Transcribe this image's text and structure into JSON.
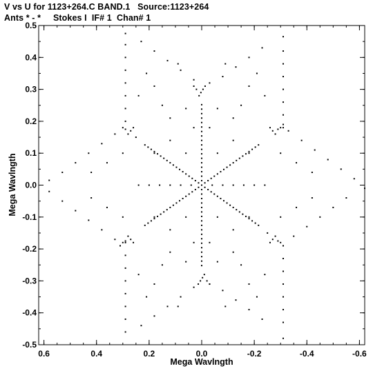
{
  "header": {
    "line1": "V vs U for 1123+264.C BAND.1   Source:1123+264",
    "line2": "Ants * - *     Stokes I  IF# 1  Chan# 1"
  },
  "chart_data": {
    "type": "scatter",
    "title": "V vs U for 1123+264.C BAND.1   Source:1123+264",
    "subtitle": "Ants * - *     Stokes I  IF# 1  Chan# 1",
    "xlabel": "Mega Wavlngth",
    "ylabel": "Mega Wavlngth",
    "xlim": [
      0.62,
      -0.62
    ],
    "ylim": [
      -0.5,
      0.5
    ],
    "xticks": [
      0.6,
      0.4,
      0.2,
      0.0,
      -0.2,
      -0.4,
      -0.6
    ],
    "xtick_labels": [
      "0.6",
      "0.4",
      "0.2",
      "0.0",
      "-0.2",
      "-0.4",
      "-0.6"
    ],
    "yticks": [
      0.5,
      0.4,
      0.3,
      0.2,
      0.1,
      0.0,
      -0.1,
      -0.2,
      -0.3,
      -0.4,
      -0.5
    ],
    "ytick_labels": [
      "0.5",
      "0.4",
      "0.3",
      "0.2",
      "0.1",
      "0.0",
      "-0.1",
      "-0.2",
      "-0.3",
      "-0.4",
      "-0.5"
    ],
    "grid": false,
    "marker_color": "#000000",
    "series": [
      {
        "points": [
          [
            0.0,
            0.0
          ],
          [
            0.012,
            0.007
          ],
          [
            0.024,
            0.014
          ],
          [
            0.036,
            0.021
          ],
          [
            0.048,
            0.028
          ],
          [
            0.06,
            0.035
          ],
          [
            0.072,
            0.042
          ],
          [
            0.084,
            0.049
          ],
          [
            0.096,
            0.056
          ],
          [
            0.108,
            0.063
          ],
          [
            0.12,
            0.07
          ],
          [
            0.132,
            0.077
          ],
          [
            0.144,
            0.084
          ],
          [
            0.156,
            0.091
          ],
          [
            0.168,
            0.098
          ],
          [
            0.18,
            0.105
          ],
          [
            0.192,
            0.112
          ],
          [
            0.204,
            0.119
          ],
          [
            0.216,
            0.126
          ],
          [
            -0.012,
            -0.007
          ],
          [
            -0.024,
            -0.014
          ],
          [
            -0.036,
            -0.021
          ],
          [
            -0.048,
            -0.028
          ],
          [
            -0.06,
            -0.035
          ],
          [
            -0.072,
            -0.042
          ],
          [
            -0.084,
            -0.049
          ],
          [
            -0.096,
            -0.056
          ],
          [
            -0.108,
            -0.063
          ],
          [
            -0.12,
            -0.07
          ],
          [
            -0.132,
            -0.077
          ],
          [
            -0.144,
            -0.084
          ],
          [
            -0.156,
            -0.091
          ],
          [
            -0.168,
            -0.098
          ],
          [
            -0.18,
            -0.105
          ],
          [
            -0.192,
            -0.112
          ],
          [
            -0.204,
            -0.119
          ],
          [
            -0.216,
            -0.126
          ],
          [
            -0.012,
            0.007
          ],
          [
            -0.024,
            0.014
          ],
          [
            -0.036,
            0.021
          ],
          [
            -0.048,
            0.028
          ],
          [
            -0.06,
            0.035
          ],
          [
            -0.072,
            0.042
          ],
          [
            -0.084,
            0.049
          ],
          [
            -0.096,
            0.056
          ],
          [
            -0.108,
            0.063
          ],
          [
            -0.12,
            0.07
          ],
          [
            -0.132,
            0.077
          ],
          [
            -0.144,
            0.084
          ],
          [
            -0.156,
            0.091
          ],
          [
            -0.168,
            0.098
          ],
          [
            -0.18,
            0.105
          ],
          [
            -0.192,
            0.112
          ],
          [
            -0.204,
            0.119
          ],
          [
            -0.216,
            0.126
          ],
          [
            0.012,
            -0.007
          ],
          [
            0.024,
            -0.014
          ],
          [
            0.036,
            -0.021
          ],
          [
            0.048,
            -0.028
          ],
          [
            0.06,
            -0.035
          ],
          [
            0.072,
            -0.042
          ],
          [
            0.084,
            -0.049
          ],
          [
            0.096,
            -0.056
          ],
          [
            0.108,
            -0.063
          ],
          [
            0.12,
            -0.07
          ],
          [
            0.132,
            -0.077
          ],
          [
            0.144,
            -0.084
          ],
          [
            0.156,
            -0.091
          ],
          [
            0.168,
            -0.098
          ],
          [
            0.18,
            -0.105
          ],
          [
            0.192,
            -0.112
          ],
          [
            0.204,
            -0.119
          ],
          [
            0.216,
            -0.126
          ],
          [
            0.0,
            0.014
          ],
          [
            0.0,
            0.028
          ],
          [
            0.0,
            0.042
          ],
          [
            0.0,
            0.056
          ],
          [
            0.0,
            0.07
          ],
          [
            0.0,
            0.084
          ],
          [
            0.0,
            0.098
          ],
          [
            0.0,
            0.112
          ],
          [
            0.0,
            0.126
          ],
          [
            0.0,
            0.14
          ],
          [
            0.0,
            0.154
          ],
          [
            0.0,
            0.168
          ],
          [
            0.0,
            0.182
          ],
          [
            0.0,
            0.196
          ],
          [
            0.0,
            0.21
          ],
          [
            0.0,
            0.224
          ],
          [
            0.0,
            0.238
          ],
          [
            0.0,
            0.252
          ],
          [
            0.0,
            -0.014
          ],
          [
            0.0,
            -0.028
          ],
          [
            0.0,
            -0.042
          ],
          [
            0.0,
            -0.056
          ],
          [
            0.0,
            -0.07
          ],
          [
            0.0,
            -0.084
          ],
          [
            0.0,
            -0.098
          ],
          [
            0.0,
            -0.112
          ],
          [
            0.0,
            -0.126
          ],
          [
            0.0,
            -0.14
          ],
          [
            0.0,
            -0.154
          ],
          [
            0.0,
            -0.168
          ],
          [
            0.0,
            -0.182
          ],
          [
            0.0,
            -0.196
          ],
          [
            0.0,
            -0.21
          ],
          [
            0.0,
            -0.224
          ],
          [
            0.0,
            -0.238
          ],
          [
            0.0,
            -0.252
          ],
          [
            0.01,
            0.28
          ],
          [
            0.003,
            0.29
          ],
          [
            -0.005,
            0.3
          ],
          [
            -0.013,
            0.31
          ],
          [
            0.02,
            0.3
          ],
          [
            0.03,
            0.31
          ],
          [
            -0.01,
            -0.28
          ],
          [
            -0.003,
            -0.29
          ],
          [
            0.005,
            -0.3
          ],
          [
            0.013,
            -0.31
          ],
          [
            -0.02,
            -0.3
          ],
          [
            -0.03,
            -0.31
          ],
          [
            0.27,
            0.17
          ],
          [
            0.26,
            0.18
          ],
          [
            0.28,
            0.16
          ],
          [
            0.29,
            0.175
          ],
          [
            0.3,
            0.18
          ],
          [
            0.25,
            0.15
          ],
          [
            -0.27,
            -0.17
          ],
          [
            -0.26,
            -0.18
          ],
          [
            -0.28,
            -0.16
          ],
          [
            -0.29,
            -0.175
          ],
          [
            -0.3,
            -0.18
          ],
          [
            -0.25,
            -0.15
          ],
          [
            -0.27,
            0.17
          ],
          [
            -0.26,
            0.18
          ],
          [
            -0.28,
            0.16
          ],
          [
            -0.29,
            0.175
          ],
          [
            -0.3,
            0.18
          ],
          [
            -0.31,
            0.19
          ],
          [
            0.27,
            -0.17
          ],
          [
            0.26,
            -0.18
          ],
          [
            0.28,
            -0.16
          ],
          [
            0.29,
            -0.175
          ],
          [
            0.3,
            -0.18
          ],
          [
            0.31,
            -0.19
          ],
          [
            0.29,
            0.475
          ],
          [
            0.29,
            0.44
          ],
          [
            0.29,
            0.4
          ],
          [
            0.29,
            0.36
          ],
          [
            0.29,
            0.32
          ],
          [
            0.29,
            0.28
          ],
          [
            0.29,
            0.24
          ],
          [
            0.29,
            0.2
          ],
          [
            0.29,
            -0.46
          ],
          [
            0.29,
            -0.42
          ],
          [
            0.29,
            -0.38
          ],
          [
            0.29,
            -0.34
          ],
          [
            0.29,
            -0.3
          ],
          [
            0.29,
            -0.26
          ],
          [
            0.29,
            -0.22
          ],
          [
            0.29,
            -0.18
          ],
          [
            -0.31,
            0.465
          ],
          [
            -0.31,
            0.42
          ],
          [
            -0.31,
            0.38
          ],
          [
            -0.31,
            0.34
          ],
          [
            -0.31,
            0.3
          ],
          [
            -0.31,
            0.26
          ],
          [
            -0.31,
            0.22
          ],
          [
            -0.31,
            0.18
          ],
          [
            -0.31,
            -0.48
          ],
          [
            -0.31,
            -0.43
          ],
          [
            -0.31,
            -0.39
          ],
          [
            -0.31,
            -0.35
          ],
          [
            -0.31,
            -0.31
          ],
          [
            -0.31,
            -0.27
          ],
          [
            -0.31,
            -0.23
          ],
          [
            -0.31,
            -0.19
          ],
          [
            0.23,
            0.45
          ],
          [
            0.18,
            0.42
          ],
          [
            0.13,
            0.39
          ],
          [
            0.08,
            0.36
          ],
          [
            0.03,
            0.33
          ],
          [
            -0.23,
            0.43
          ],
          [
            -0.18,
            0.4
          ],
          [
            -0.13,
            0.37
          ],
          [
            -0.08,
            0.34
          ],
          [
            -0.03,
            0.32
          ],
          [
            0.23,
            -0.44
          ],
          [
            0.18,
            -0.41
          ],
          [
            0.13,
            -0.38
          ],
          [
            0.08,
            -0.35
          ],
          [
            0.03,
            -0.32
          ],
          [
            -0.23,
            -0.42
          ],
          [
            -0.18,
            -0.39
          ],
          [
            -0.13,
            -0.36
          ],
          [
            -0.08,
            -0.33
          ],
          [
            -0.03,
            -0.31
          ],
          [
            0.58,
            0.015
          ],
          [
            0.53,
            0.04
          ],
          [
            0.48,
            0.07
          ],
          [
            0.43,
            0.1
          ],
          [
            0.38,
            0.13
          ],
          [
            0.33,
            0.16
          ],
          [
            0.58,
            -0.02
          ],
          [
            0.53,
            -0.05
          ],
          [
            0.48,
            -0.08
          ],
          [
            0.43,
            -0.11
          ],
          [
            0.38,
            -0.14
          ],
          [
            0.33,
            -0.17
          ],
          [
            -0.58,
            0.02
          ],
          [
            -0.53,
            0.05
          ],
          [
            -0.48,
            0.08
          ],
          [
            -0.43,
            0.11
          ],
          [
            -0.38,
            0.14
          ],
          [
            -0.33,
            0.17
          ],
          [
            -0.62,
            -0.01
          ],
          [
            -0.55,
            -0.04
          ],
          [
            -0.5,
            -0.07
          ],
          [
            -0.45,
            -0.1
          ],
          [
            -0.4,
            -0.13
          ],
          [
            -0.35,
            -0.16
          ],
          [
            0.24,
            0.0
          ],
          [
            0.2,
            0.0
          ],
          [
            0.16,
            0.0
          ],
          [
            0.12,
            0.0
          ],
          [
            0.08,
            0.0
          ],
          [
            0.04,
            0.0
          ],
          [
            -0.04,
            0.0
          ],
          [
            -0.08,
            0.0
          ],
          [
            -0.12,
            0.0
          ],
          [
            -0.16,
            0.0
          ],
          [
            -0.2,
            0.0
          ],
          [
            -0.24,
            0.0
          ],
          [
            0.12,
            0.21
          ],
          [
            0.12,
            0.14
          ],
          [
            0.12,
            -0.14
          ],
          [
            0.12,
            -0.21
          ],
          [
            -0.12,
            0.21
          ],
          [
            -0.12,
            0.14
          ],
          [
            -0.12,
            -0.14
          ],
          [
            -0.12,
            -0.21
          ],
          [
            0.18,
            0.31
          ],
          [
            0.18,
            0.1
          ],
          [
            0.18,
            -0.1
          ],
          [
            0.18,
            -0.31
          ],
          [
            -0.18,
            0.31
          ],
          [
            -0.18,
            0.1
          ],
          [
            -0.18,
            -0.1
          ],
          [
            -0.18,
            -0.31
          ],
          [
            0.06,
            0.24
          ],
          [
            0.06,
            0.1
          ],
          [
            0.06,
            -0.1
          ],
          [
            0.06,
            -0.24
          ],
          [
            -0.06,
            0.24
          ],
          [
            -0.06,
            0.1
          ],
          [
            -0.06,
            -0.1
          ],
          [
            -0.06,
            -0.24
          ],
          [
            0.24,
            0.28
          ],
          [
            0.24,
            -0.28
          ],
          [
            -0.24,
            0.28
          ],
          [
            -0.24,
            -0.28
          ],
          [
            0.36,
            0.07
          ],
          [
            0.36,
            -0.07
          ],
          [
            -0.36,
            0.07
          ],
          [
            -0.36,
            -0.07
          ],
          [
            0.42,
            0.04
          ],
          [
            0.42,
            -0.04
          ],
          [
            -0.42,
            0.04
          ],
          [
            -0.42,
            -0.04
          ],
          [
            0.3,
            0.1
          ],
          [
            0.3,
            -0.1
          ],
          [
            -0.3,
            0.1
          ],
          [
            -0.3,
            -0.1
          ],
          [
            0.09,
            0.38
          ],
          [
            0.09,
            -0.38
          ],
          [
            -0.09,
            0.38
          ],
          [
            -0.09,
            -0.38
          ],
          [
            0.15,
            0.25
          ],
          [
            0.15,
            -0.25
          ],
          [
            -0.15,
            0.25
          ],
          [
            -0.15,
            -0.25
          ],
          [
            0.21,
            0.35
          ],
          [
            0.21,
            -0.35
          ],
          [
            -0.21,
            0.35
          ],
          [
            -0.21,
            -0.35
          ],
          [
            0.03,
            0.18
          ],
          [
            0.03,
            -0.18
          ],
          [
            -0.03,
            0.18
          ],
          [
            -0.03,
            -0.18
          ]
        ]
      }
    ]
  }
}
